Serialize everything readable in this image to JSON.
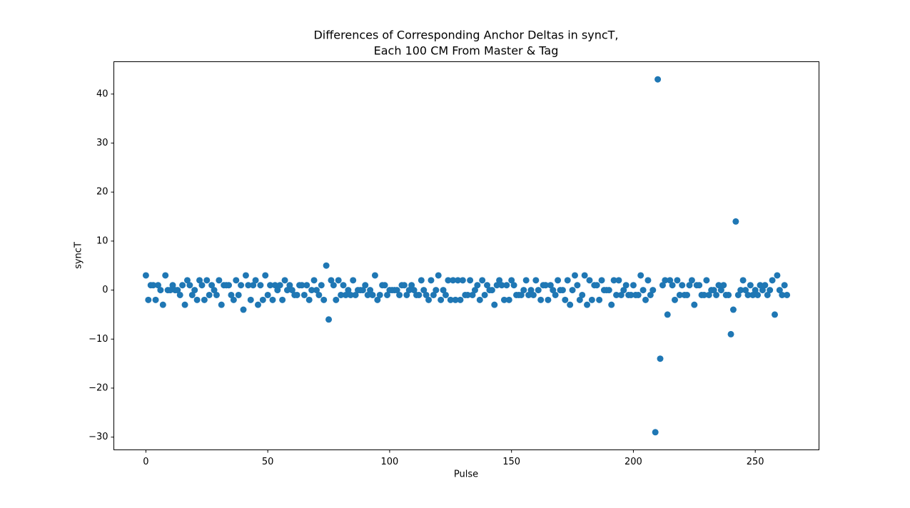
{
  "chart_data": {
    "type": "scatter",
    "title": [
      "Differences of Corresponding Anchor Deltas in syncT,",
      "Each 100 CM From Master & Tag"
    ],
    "x_label": "Pulse",
    "y_label": "syncT",
    "color": "#1f77b4",
    "xlim": [
      -13.15,
      276.15
    ],
    "xticks": [
      0,
      50,
      100,
      150,
      200,
      250
    ],
    "ylim": [
      -32.6,
      46.6
    ],
    "yticks": [
      {
        "value": -30,
        "label": "−30"
      },
      {
        "value": -20,
        "label": "−20"
      },
      {
        "value": -10,
        "label": "−10"
      },
      0,
      10,
      20,
      30,
      40
    ],
    "x": [
      0,
      1,
      2,
      3,
      4,
      5,
      6,
      7,
      8,
      9,
      10,
      11,
      12,
      13,
      14,
      15,
      16,
      17,
      18,
      19,
      20,
      21,
      22,
      23,
      24,
      25,
      26,
      27,
      28,
      29,
      30,
      31,
      32,
      33,
      34,
      35,
      36,
      37,
      38,
      39,
      40,
      41,
      42,
      43,
      44,
      45,
      46,
      47,
      48,
      49,
      50,
      51,
      52,
      53,
      54,
      55,
      56,
      57,
      58,
      59,
      60,
      61,
      62,
      63,
      64,
      65,
      66,
      67,
      68,
      69,
      70,
      71,
      72,
      73,
      74,
      75,
      76,
      77,
      78,
      79,
      80,
      81,
      82,
      83,
      84,
      85,
      86,
      87,
      88,
      89,
      90,
      91,
      92,
      93,
      94,
      95,
      96,
      97,
      98,
      99,
      100,
      101,
      102,
      103,
      104,
      105,
      106,
      107,
      108,
      109,
      110,
      111,
      112,
      113,
      114,
      115,
      116,
      117,
      118,
      119,
      120,
      121,
      122,
      123,
      124,
      125,
      126,
      127,
      128,
      129,
      130,
      131,
      132,
      133,
      134,
      135,
      136,
      137,
      138,
      139,
      140,
      141,
      142,
      143,
      144,
      145,
      146,
      147,
      148,
      149,
      150,
      151,
      152,
      153,
      154,
      155,
      156,
      157,
      158,
      159,
      160,
      161,
      162,
      163,
      164,
      165,
      166,
      167,
      168,
      169,
      170,
      171,
      172,
      173,
      174,
      175,
      176,
      177,
      178,
      179,
      180,
      181,
      182,
      183,
      184,
      185,
      186,
      187,
      188,
      189,
      190,
      191,
      192,
      193,
      194,
      195,
      196,
      197,
      198,
      199,
      200,
      201,
      202,
      203,
      204,
      205,
      206,
      207,
      208,
      209,
      210,
      211,
      212,
      213,
      214,
      215,
      216,
      217,
      218,
      219,
      220,
      221,
      222,
      223,
      224,
      225,
      226,
      227,
      228,
      229,
      230,
      231,
      232,
      233,
      234,
      235,
      236,
      237,
      238,
      239,
      240,
      241,
      242,
      243,
      244,
      245,
      246,
      247,
      248,
      249,
      250,
      251,
      252,
      253,
      254,
      255,
      256,
      257,
      258,
      259,
      260,
      261,
      262,
      263
    ],
    "values": [
      3,
      -2,
      1,
      1,
      -2,
      1,
      0,
      -3,
      3,
      0,
      0,
      1,
      0,
      0,
      -1,
      1,
      -3,
      2,
      1,
      -1,
      0,
      -2,
      2,
      1,
      -2,
      2,
      -1,
      1,
      0,
      -1,
      2,
      -3,
      1,
      1,
      1,
      -1,
      -2,
      2,
      -1,
      1,
      -4,
      3,
      1,
      -2,
      1,
      2,
      -3,
      1,
      -2,
      3,
      -1,
      1,
      -2,
      1,
      0,
      1,
      -2,
      2,
      0,
      1,
      0,
      -1,
      -1,
      1,
      1,
      -1,
      1,
      -2,
      0,
      2,
      0,
      -1,
      1,
      -2,
      5,
      -6,
      2,
      1,
      -2,
      2,
      -1,
      1,
      -1,
      0,
      -1,
      2,
      -1,
      0,
      0,
      0,
      1,
      -1,
      0,
      -1,
      3,
      -2,
      -1,
      1,
      1,
      -1,
      0,
      0,
      0,
      0,
      -1,
      1,
      1,
      -1,
      0,
      1,
      0,
      -1,
      -1,
      2,
      0,
      -1,
      -2,
      2,
      -1,
      0,
      3,
      -2,
      0,
      -1,
      2,
      -2,
      2,
      -2,
      2,
      -2,
      2,
      -1,
      -1,
      2,
      -1,
      0,
      1,
      -2,
      2,
      -1,
      1,
      0,
      0,
      -3,
      1,
      2,
      1,
      -2,
      1,
      -2,
      2,
      1,
      -1,
      -1,
      -1,
      0,
      2,
      -1,
      0,
      -1,
      2,
      0,
      -2,
      1,
      1,
      -2,
      1,
      0,
      -1,
      2,
      0,
      0,
      -2,
      2,
      -3,
      0,
      3,
      1,
      -2,
      -1,
      3,
      -3,
      2,
      -2,
      1,
      1,
      -2,
      2,
      0,
      0,
      0,
      -3,
      2,
      -1,
      2,
      -1,
      0,
      1,
      -1,
      -1,
      1,
      -1,
      -1,
      3,
      0,
      -2,
      2,
      -1,
      0,
      -29,
      43,
      -14,
      1,
      2,
      -5,
      2,
      1,
      -2,
      2,
      -1,
      1,
      -1,
      -1,
      1,
      2,
      -3,
      1,
      1,
      -1,
      -1,
      2,
      -1,
      0,
      0,
      -1,
      1,
      0,
      1,
      -1,
      -1,
      -9,
      -4,
      14,
      -1,
      0,
      2,
      0,
      -1,
      1,
      -1,
      0,
      -1,
      1,
      0,
      1,
      -1,
      0,
      2,
      -5,
      3,
      0,
      -1,
      1,
      -1
    ]
  }
}
